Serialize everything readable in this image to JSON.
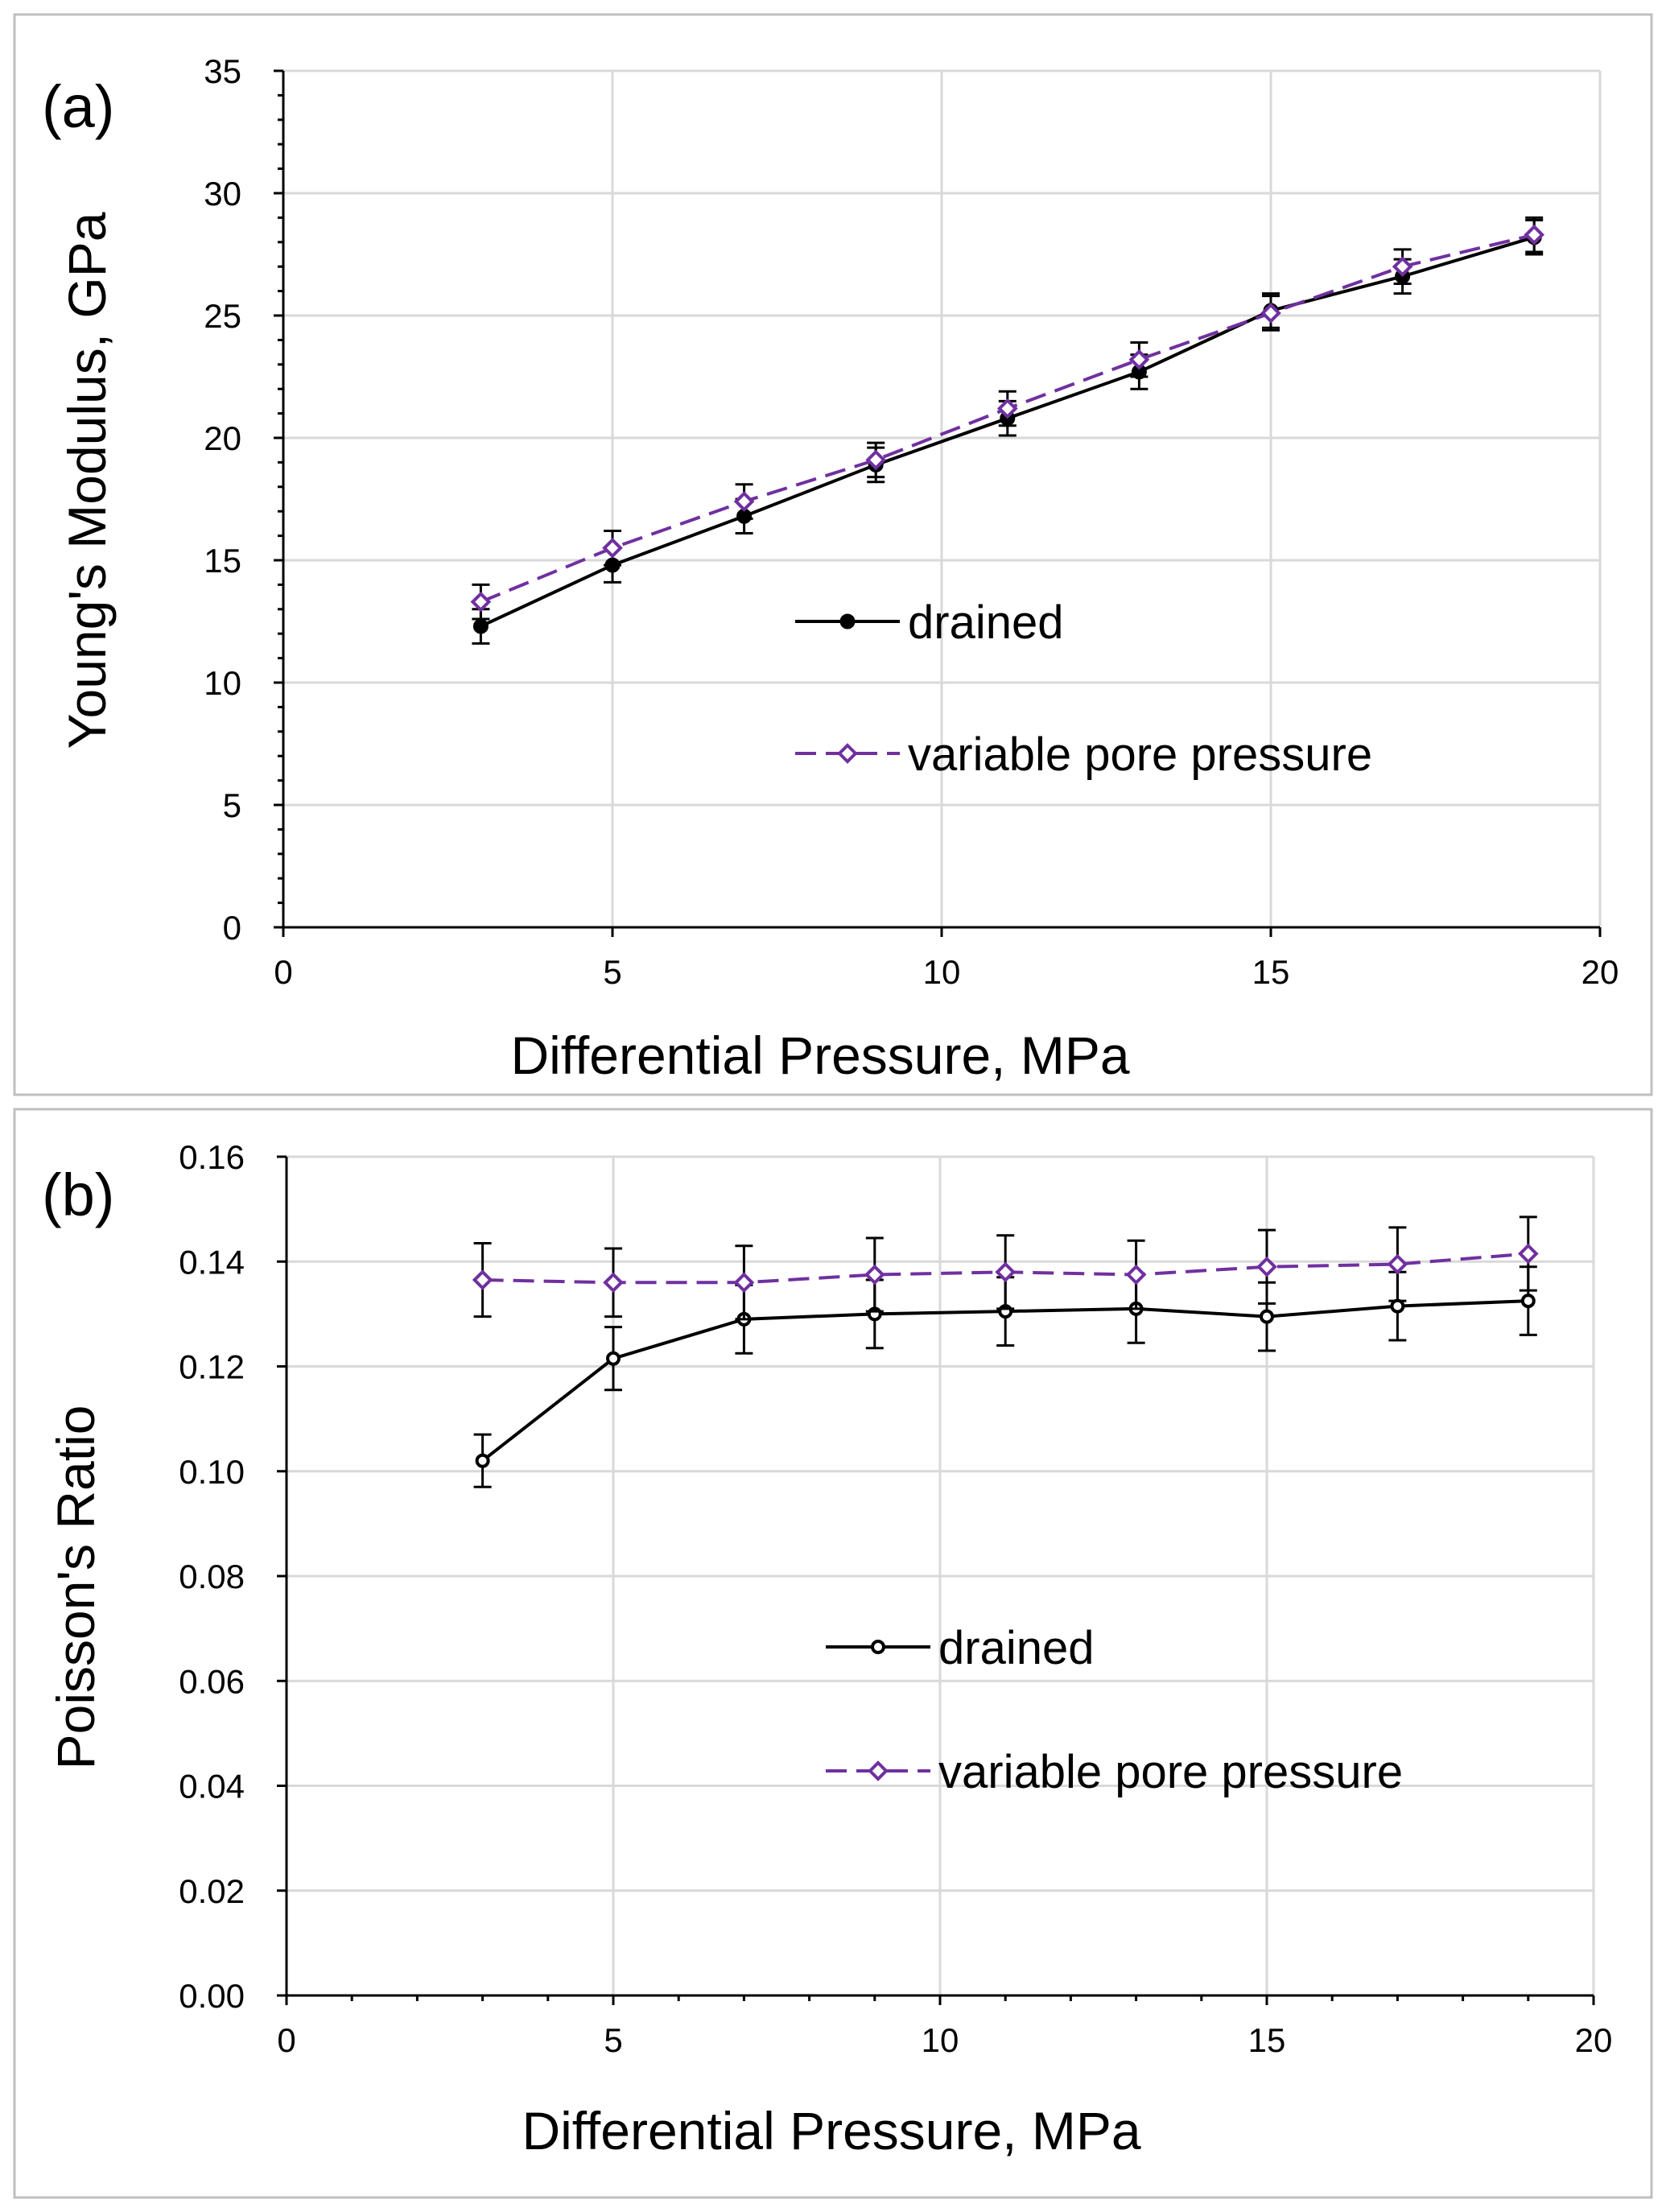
{
  "chart_data": [
    {
      "type": "line",
      "panel_label": "(a)",
      "xlabel": "Differential Pressure, MPa",
      "ylabel": "Young's Modulus, GPa",
      "xlim": [
        0,
        20
      ],
      "ylim": [
        0,
        35
      ],
      "xticks": [
        0,
        5,
        10,
        15,
        20
      ],
      "yticks": [
        0,
        5,
        10,
        15,
        20,
        25,
        30,
        35
      ],
      "yminor_step": 1,
      "ytick_decimals": 0,
      "grid": true,
      "legend_position": "center-right",
      "x": [
        3,
        5,
        7,
        9,
        11,
        13,
        15,
        17,
        19
      ],
      "series": [
        {
          "name": "drained",
          "values": [
            12.3,
            14.8,
            16.8,
            18.9,
            20.8,
            22.7,
            25.2,
            26.6,
            28.2
          ],
          "errors": [
            0.7,
            0.7,
            0.7,
            0.7,
            0.7,
            0.7,
            0.7,
            0.7,
            0.7
          ],
          "color": "#000000",
          "marker": "filled-circle",
          "dash": "solid"
        },
        {
          "name": "variable pore pressure",
          "values": [
            13.3,
            15.5,
            17.4,
            19.1,
            21.2,
            23.2,
            25.1,
            27.0,
            28.3
          ],
          "errors": [
            0.7,
            0.7,
            0.7,
            0.7,
            0.7,
            0.7,
            0.7,
            0.7,
            0.7
          ],
          "color": "#7030a0",
          "marker": "open-diamond",
          "dash": "dashed"
        }
      ]
    },
    {
      "type": "line",
      "panel_label": "(b)",
      "xlabel": "Differential Pressure, MPa",
      "ylabel": "Poisson's Ratio",
      "xlim": [
        0,
        20
      ],
      "ylim": [
        0,
        0.16
      ],
      "xticks": [
        0,
        5,
        10,
        15,
        20
      ],
      "yticks": [
        0,
        0.02,
        0.04,
        0.06,
        0.08,
        0.1,
        0.12,
        0.14,
        0.16
      ],
      "xminor_step": 1,
      "ytick_decimals": 2,
      "grid": true,
      "legend_position": "center-right",
      "x": [
        3,
        5,
        7,
        9,
        11,
        13,
        15,
        17,
        19
      ],
      "series": [
        {
          "name": "drained",
          "values": [
            0.102,
            0.1215,
            0.129,
            0.13,
            0.1305,
            0.131,
            0.1295,
            0.1315,
            0.1325
          ],
          "errors": [
            0.005,
            0.006,
            0.0065,
            0.0065,
            0.0065,
            0.0065,
            0.0065,
            0.0065,
            0.0065
          ],
          "color": "#000000",
          "marker": "open-circle",
          "dash": "solid"
        },
        {
          "name": "variable pore pressure",
          "values": [
            0.1365,
            0.136,
            0.136,
            0.1375,
            0.138,
            0.1375,
            0.139,
            0.1395,
            0.1415
          ],
          "errors": [
            0.007,
            0.0065,
            0.007,
            0.007,
            0.007,
            0.0065,
            0.007,
            0.007,
            0.007
          ],
          "color": "#7030a0",
          "marker": "open-diamond",
          "dash": "dashed"
        }
      ]
    }
  ]
}
